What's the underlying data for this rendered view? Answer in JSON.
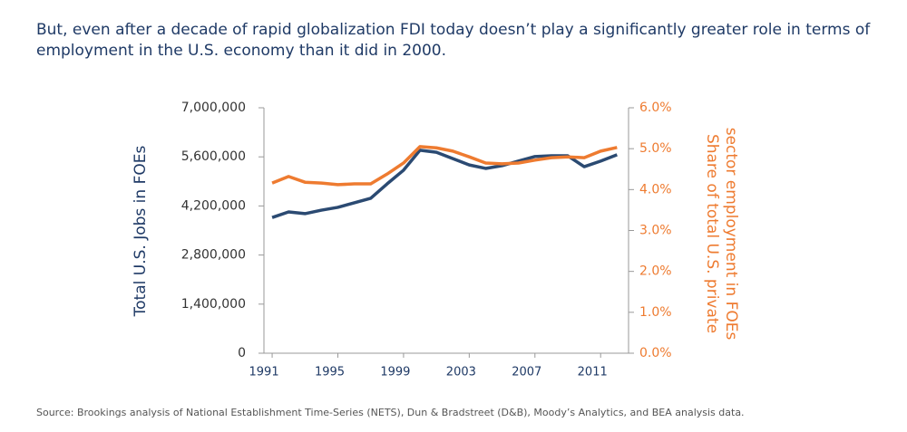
{
  "chart_data": {
    "type": "line",
    "title": "But, even after a decade of rapid globalization FDI today doesn’t play a significantly greater role in terms of",
    "subtitle": "employment in the U.S. economy than it did in 2000.",
    "y_label": "Total U.S. Jobs in FOEs",
    "y2_label_1": "Share of total U.S. private",
    "y2_label_2": "sector employment in FOEs",
    "source": "Source: Brookings analysis of National Establishment Time-Series (NETS), Dun & Bradstreet (D&B), Moody’s Analytics, and BEA analysis data.",
    "x": [
      1991,
      1992,
      1993,
      1994,
      1995,
      1996,
      1997,
      1998,
      1999,
      2000,
      2001,
      2002,
      2003,
      2004,
      2005,
      2006,
      2007,
      2008,
      2009,
      2010,
      2011,
      2012
    ],
    "xlim": [
      1990.5,
      2012.7
    ],
    "xticks": [
      1991,
      1995,
      1999,
      2003,
      2007,
      2011
    ],
    "ylim": [
      0,
      7000000
    ],
    "yticks": [
      0,
      {
        "value": 1400000,
        "label": "1,400,000"
      },
      {
        "value": 2800000,
        "label": "2,800,000"
      },
      {
        "value": 4200000,
        "label": "4,200,000"
      },
      {
        "value": 5600000,
        "label": "5,600,000"
      },
      {
        "value": 7000000,
        "label": "7,000,000"
      }
    ],
    "y2lim": [
      0,
      6
    ],
    "y2ticks": [
      {
        "value": 0,
        "label": "0.0%"
      },
      {
        "value": 1,
        "label": "1.0%"
      },
      {
        "value": 2,
        "label": "2.0%"
      },
      {
        "value": 3,
        "label": "3.0%"
      },
      {
        "value": 4,
        "label": "4.0%"
      },
      {
        "value": 5,
        "label": "5.0%"
      },
      {
        "value": 6,
        "label": "6.0%"
      }
    ],
    "series": [
      {
        "color": "#2b4a72",
        "values": [
          3870000,
          4030000,
          3980000,
          4080000,
          4160000,
          4290000,
          4420000,
          4830000,
          5220000,
          5790000,
          5730000,
          5550000,
          5370000,
          5270000,
          5350000,
          5480000,
          5610000,
          5630000,
          5630000,
          5320000,
          5480000,
          5660000
        ]
      },
      {
        "color": "#ee7b30",
        "axis": "y2",
        "values": [
          4.16,
          4.32,
          4.18,
          4.16,
          4.12,
          4.14,
          4.14,
          4.38,
          4.65,
          5.05,
          5.02,
          4.94,
          4.8,
          4.65,
          4.63,
          4.65,
          4.72,
          4.78,
          4.8,
          4.78,
          4.94,
          5.03
        ]
      }
    ]
  }
}
